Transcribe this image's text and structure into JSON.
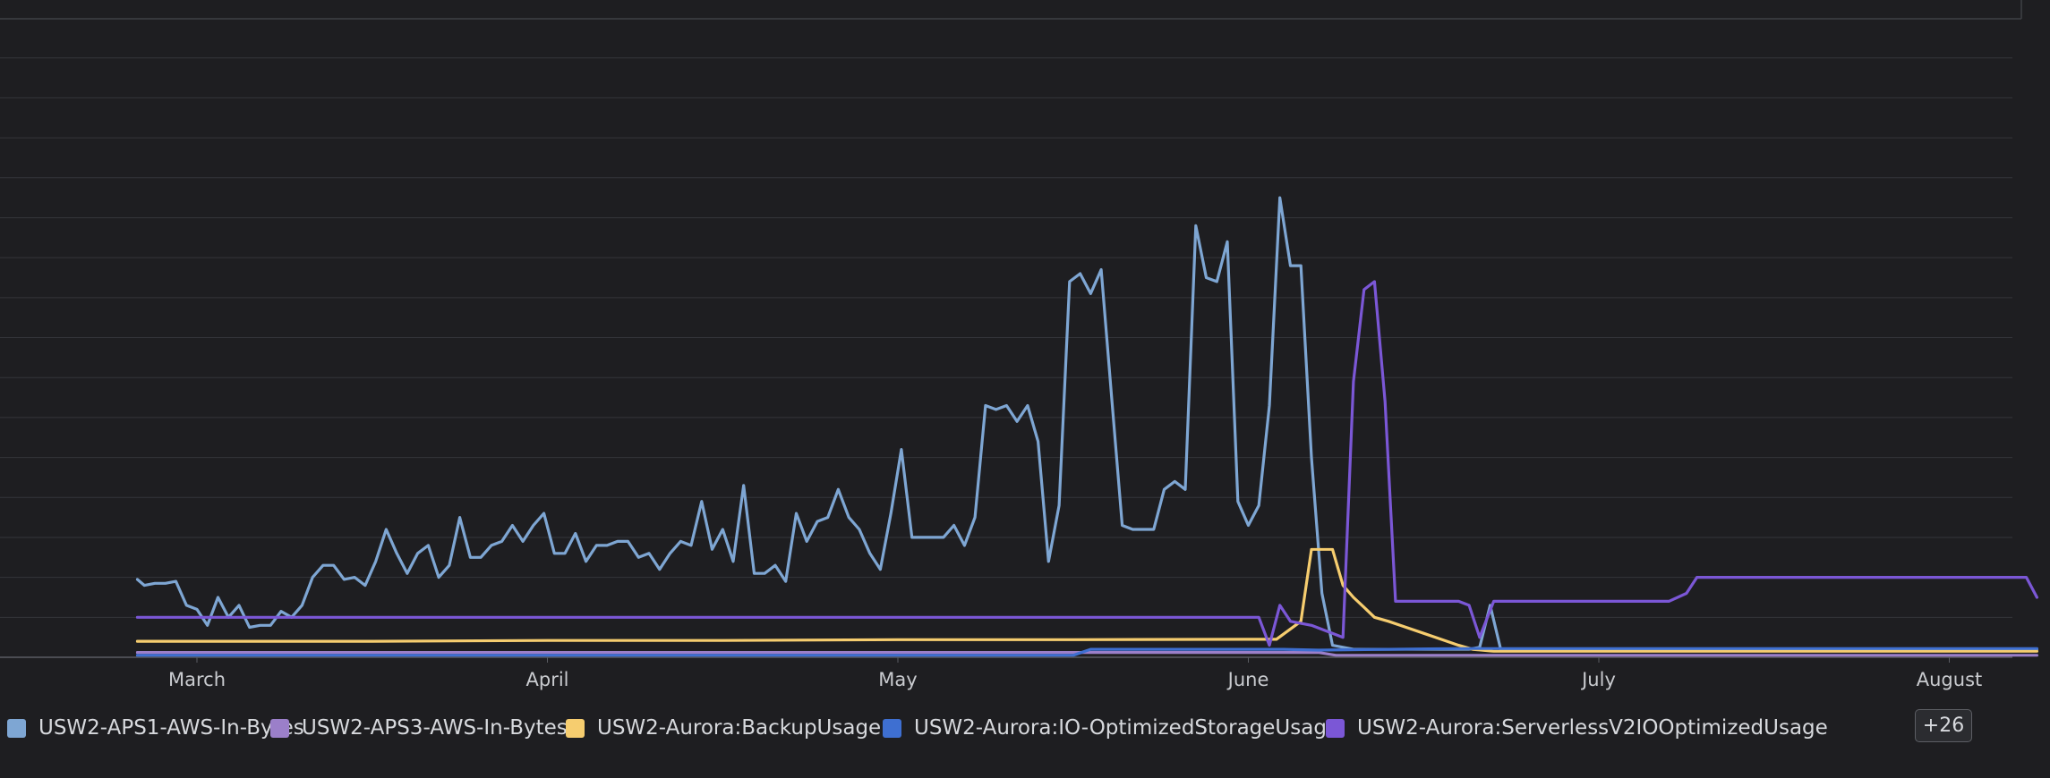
{
  "chart_data": {
    "type": "line",
    "x_ticks": [
      "March",
      "April",
      "May",
      "June",
      "July",
      "August"
    ],
    "ylim": [
      0,
      16
    ],
    "grid": true,
    "legend_position": "bottom",
    "series": [
      {
        "name": "USW2-APS1-AWS-In-Bytes",
        "color": "#7ea6d3",
        "points": [
          [
            -0.17,
            1.95
          ],
          [
            -0.15,
            1.8
          ],
          [
            -0.12,
            1.85
          ],
          [
            -0.09,
            1.85
          ],
          [
            -0.06,
            1.9
          ],
          [
            -0.03,
            1.3
          ],
          [
            0.0,
            1.2
          ],
          [
            0.03,
            0.8
          ],
          [
            0.06,
            1.5
          ],
          [
            0.09,
            1.0
          ],
          [
            0.12,
            1.3
          ],
          [
            0.15,
            0.75
          ],
          [
            0.18,
            0.8
          ],
          [
            0.21,
            0.8
          ],
          [
            0.24,
            1.15
          ],
          [
            0.27,
            1.0
          ],
          [
            0.3,
            1.3
          ],
          [
            0.33,
            2.0
          ],
          [
            0.36,
            2.3
          ],
          [
            0.39,
            2.3
          ],
          [
            0.42,
            1.95
          ],
          [
            0.45,
            2.0
          ],
          [
            0.48,
            1.8
          ],
          [
            0.51,
            2.4
          ],
          [
            0.54,
            3.2
          ],
          [
            0.57,
            2.6
          ],
          [
            0.6,
            2.1
          ],
          [
            0.63,
            2.6
          ],
          [
            0.66,
            2.8
          ],
          [
            0.69,
            2.0
          ],
          [
            0.72,
            2.3
          ],
          [
            0.75,
            3.5
          ],
          [
            0.78,
            2.5
          ],
          [
            0.81,
            2.5
          ],
          [
            0.84,
            2.8
          ],
          [
            0.87,
            2.9
          ],
          [
            0.9,
            3.3
          ],
          [
            0.93,
            2.9
          ],
          [
            0.96,
            3.3
          ],
          [
            0.99,
            3.6
          ],
          [
            1.02,
            2.6
          ],
          [
            1.05,
            2.6
          ],
          [
            1.08,
            3.1
          ],
          [
            1.11,
            2.4
          ],
          [
            1.14,
            2.8
          ],
          [
            1.17,
            2.8
          ],
          [
            1.2,
            2.9
          ],
          [
            1.23,
            2.9
          ],
          [
            1.26,
            2.5
          ],
          [
            1.29,
            2.6
          ],
          [
            1.32,
            2.2
          ],
          [
            1.35,
            2.6
          ],
          [
            1.38,
            2.9
          ],
          [
            1.41,
            2.8
          ],
          [
            1.44,
            3.9
          ],
          [
            1.47,
            2.7
          ],
          [
            1.5,
            3.2
          ],
          [
            1.53,
            2.4
          ],
          [
            1.56,
            4.3
          ],
          [
            1.59,
            2.1
          ],
          [
            1.62,
            2.1
          ],
          [
            1.65,
            2.3
          ],
          [
            1.68,
            1.9
          ],
          [
            1.71,
            3.6
          ],
          [
            1.74,
            2.9
          ],
          [
            1.77,
            3.4
          ],
          [
            1.8,
            3.5
          ],
          [
            1.83,
            4.2
          ],
          [
            1.86,
            3.5
          ],
          [
            1.89,
            3.2
          ],
          [
            1.92,
            2.6
          ],
          [
            1.95,
            2.2
          ],
          [
            1.98,
            3.6
          ],
          [
            2.01,
            5.2
          ],
          [
            2.04,
            3.0
          ],
          [
            2.07,
            3.0
          ],
          [
            2.1,
            3.0
          ],
          [
            2.13,
            3.0
          ],
          [
            2.16,
            3.3
          ],
          [
            2.19,
            2.8
          ],
          [
            2.22,
            3.5
          ],
          [
            2.25,
            6.3
          ],
          [
            2.28,
            6.2
          ],
          [
            2.31,
            6.3
          ],
          [
            2.34,
            5.9
          ],
          [
            2.37,
            6.3
          ],
          [
            2.4,
            5.4
          ],
          [
            2.43,
            2.4
          ],
          [
            2.46,
            3.8
          ],
          [
            2.49,
            9.4
          ],
          [
            2.52,
            9.6
          ],
          [
            2.55,
            9.1
          ],
          [
            2.58,
            9.7
          ],
          [
            2.61,
            6.5
          ],
          [
            2.64,
            3.3
          ],
          [
            2.67,
            3.2
          ],
          [
            2.7,
            3.2
          ],
          [
            2.73,
            3.2
          ],
          [
            2.76,
            4.2
          ],
          [
            2.79,
            4.4
          ],
          [
            2.82,
            4.2
          ],
          [
            2.85,
            10.8
          ],
          [
            2.88,
            9.5
          ],
          [
            2.91,
            9.4
          ],
          [
            2.94,
            10.4
          ],
          [
            2.97,
            3.9
          ],
          [
            3.0,
            3.3
          ],
          [
            3.03,
            3.8
          ],
          [
            3.06,
            6.3
          ],
          [
            3.09,
            11.5
          ],
          [
            3.12,
            9.8
          ],
          [
            3.15,
            9.8
          ],
          [
            3.18,
            5.0
          ],
          [
            3.21,
            1.6
          ],
          [
            3.24,
            0.3
          ],
          [
            3.27,
            0.25
          ],
          [
            3.3,
            0.2
          ],
          [
            3.33,
            0.2
          ],
          [
            3.36,
            0.2
          ],
          [
            3.39,
            0.2
          ],
          [
            3.42,
            0.2
          ],
          [
            3.45,
            0.2
          ],
          [
            3.48,
            0.2
          ],
          [
            3.51,
            0.2
          ],
          [
            3.54,
            0.2
          ],
          [
            3.57,
            0.2
          ],
          [
            3.6,
            0.2
          ],
          [
            3.63,
            0.2
          ],
          [
            3.66,
            0.25
          ],
          [
            3.69,
            1.3
          ],
          [
            3.72,
            0.2
          ],
          [
            4.0,
            0.2
          ],
          [
            5.0,
            0.2
          ],
          [
            5.25,
            0.2
          ]
        ]
      },
      {
        "name": "USW2-APS3-AWS-In-Bytes",
        "color": "#9b7fc9",
        "points": [
          [
            -0.17,
            0.12
          ],
          [
            1.0,
            0.12
          ],
          [
            2.0,
            0.12
          ],
          [
            3.0,
            0.12
          ],
          [
            3.2,
            0.12
          ],
          [
            3.25,
            0.05
          ],
          [
            3.5,
            0.05
          ],
          [
            4.0,
            0.05
          ],
          [
            5.0,
            0.05
          ],
          [
            5.25,
            0.05
          ]
        ]
      },
      {
        "name": "USW2-Aurora:BackupUsage",
        "color": "#f6cd6f",
        "points": [
          [
            -0.17,
            0.4
          ],
          [
            0.5,
            0.4
          ],
          [
            1.0,
            0.42
          ],
          [
            1.5,
            0.42
          ],
          [
            2.0,
            0.44
          ],
          [
            2.5,
            0.44
          ],
          [
            3.0,
            0.45
          ],
          [
            3.08,
            0.45
          ],
          [
            3.15,
            0.9
          ],
          [
            3.18,
            2.7
          ],
          [
            3.21,
            2.7
          ],
          [
            3.24,
            2.7
          ],
          [
            3.27,
            1.8
          ],
          [
            3.3,
            1.5
          ],
          [
            3.33,
            1.25
          ],
          [
            3.36,
            1.0
          ],
          [
            3.4,
            0.9
          ],
          [
            3.45,
            0.75
          ],
          [
            3.5,
            0.6
          ],
          [
            3.55,
            0.45
          ],
          [
            3.6,
            0.3
          ],
          [
            3.64,
            0.2
          ],
          [
            3.7,
            0.15
          ],
          [
            4.0,
            0.15
          ],
          [
            5.25,
            0.15
          ]
        ]
      },
      {
        "name": "USW2-Aurora:IO-OptimizedStorageUsage",
        "color": "#3e6fd1",
        "points": [
          [
            -0.17,
            0.05
          ],
          [
            2.5,
            0.05
          ],
          [
            2.55,
            0.2
          ],
          [
            3.0,
            0.2
          ],
          [
            3.1,
            0.2
          ],
          [
            3.2,
            0.18
          ],
          [
            3.4,
            0.2
          ],
          [
            3.6,
            0.22
          ],
          [
            4.0,
            0.22
          ],
          [
            4.5,
            0.22
          ],
          [
            5.0,
            0.22
          ],
          [
            5.25,
            0.22
          ]
        ]
      },
      {
        "name": "USW2-Aurora:ServerlessV2IOOptimizedUsage",
        "color": "#7b57d6",
        "points": [
          [
            -0.17,
            1.0
          ],
          [
            0.5,
            1.0
          ],
          [
            1.0,
            1.0
          ],
          [
            1.5,
            1.0
          ],
          [
            2.0,
            1.0
          ],
          [
            2.5,
            1.0
          ],
          [
            3.0,
            1.0
          ],
          [
            3.03,
            1.0
          ],
          [
            3.06,
            0.3
          ],
          [
            3.09,
            1.3
          ],
          [
            3.12,
            0.9
          ],
          [
            3.18,
            0.8
          ],
          [
            3.24,
            0.6
          ],
          [
            3.27,
            0.5
          ],
          [
            3.3,
            6.9
          ],
          [
            3.33,
            9.2
          ],
          [
            3.36,
            9.4
          ],
          [
            3.39,
            6.4
          ],
          [
            3.42,
            1.4
          ],
          [
            3.45,
            1.4
          ],
          [
            3.5,
            1.4
          ],
          [
            3.55,
            1.4
          ],
          [
            3.6,
            1.4
          ],
          [
            3.63,
            1.3
          ],
          [
            3.66,
            0.5
          ],
          [
            3.7,
            1.4
          ],
          [
            3.8,
            1.4
          ],
          [
            3.9,
            1.4
          ],
          [
            4.0,
            1.4
          ],
          [
            4.1,
            1.4
          ],
          [
            4.2,
            1.4
          ],
          [
            4.25,
            1.6
          ],
          [
            4.28,
            2.0
          ],
          [
            4.5,
            2.0
          ],
          [
            4.75,
            2.0
          ],
          [
            5.0,
            2.0
          ],
          [
            5.22,
            2.0
          ],
          [
            5.25,
            1.5
          ]
        ]
      }
    ]
  },
  "legend": {
    "items": [
      {
        "label": "USW2-APS1-AWS-In-Bytes",
        "color": "#7ea6d3"
      },
      {
        "label": "USW2-APS3-AWS-In-Bytes",
        "color": "#9b7fc9"
      },
      {
        "label": "USW2-Aurora:BackupUsage",
        "color": "#f6cd6f"
      },
      {
        "label": "USW2-Aurora:IO-OptimizedStorageUsage",
        "color": "#3e6fd1"
      },
      {
        "label": "USW2-Aurora:ServerlessV2IOOptimizedUsage",
        "color": "#7b57d6"
      }
    ],
    "more_label": "+26"
  },
  "colors": {
    "background": "#1e1e21",
    "grid": "#34353a",
    "axis": "#5a5c62"
  }
}
